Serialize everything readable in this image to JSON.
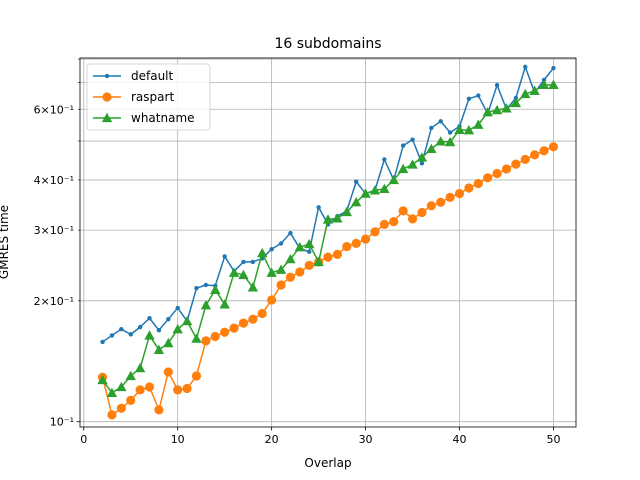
{
  "chart_data": {
    "type": "line",
    "title": "16 subdomains",
    "xlabel": "Overlap",
    "ylabel": "GMRES time",
    "xlim": [
      -0.4,
      52.4
    ],
    "ylim": [
      0.097,
      0.805
    ],
    "yscale": "log",
    "grid": true,
    "legend_position": "upper left",
    "x_ticks": [
      0,
      10,
      20,
      30,
      40,
      50
    ],
    "x_tick_labels": [
      "0",
      "10",
      "20",
      "30",
      "40",
      "50"
    ],
    "y_major_ticks": [
      0.1
    ],
    "y_major_tick_labels": [
      "10⁻¹"
    ],
    "y_minor_ticks": [
      0.2,
      0.3,
      0.4,
      0.5,
      0.6,
      0.7,
      0.8
    ],
    "y_minor_tick_labels": [
      "2×10⁻¹",
      "3×10⁻¹",
      "4×10⁻¹",
      "",
      "6×10⁻¹",
      "",
      ""
    ],
    "x": [
      2,
      3,
      4,
      5,
      6,
      7,
      8,
      9,
      10,
      11,
      12,
      13,
      14,
      15,
      16,
      17,
      18,
      19,
      20,
      21,
      22,
      23,
      24,
      25,
      26,
      27,
      28,
      29,
      30,
      31,
      32,
      33,
      34,
      35,
      36,
      37,
      38,
      39,
      40,
      41,
      42,
      43,
      44,
      45,
      46,
      47,
      48,
      49,
      50
    ],
    "series": [
      {
        "name": "default",
        "color": "#1f77b4",
        "marker": "point",
        "values": [
          0.158,
          0.164,
          0.17,
          0.165,
          0.172,
          0.181,
          0.169,
          0.18,
          0.192,
          0.178,
          0.215,
          0.219,
          0.218,
          0.258,
          0.237,
          0.25,
          0.25,
          0.255,
          0.269,
          0.278,
          0.295,
          0.27,
          0.265,
          0.342,
          0.31,
          0.325,
          0.335,
          0.396,
          0.37,
          0.377,
          0.45,
          0.4,
          0.487,
          0.504,
          0.44,
          0.539,
          0.56,
          0.525,
          0.544,
          0.637,
          0.649,
          0.585,
          0.689,
          0.6,
          0.64,
          0.765,
          0.66,
          0.71,
          0.76
        ]
      },
      {
        "name": "raspart",
        "color": "#ff7f0e",
        "marker": "circle",
        "values": [
          0.129,
          0.104,
          0.108,
          0.113,
          0.12,
          0.122,
          0.107,
          0.133,
          0.12,
          0.121,
          0.13,
          0.159,
          0.163,
          0.167,
          0.171,
          0.176,
          0.18,
          0.186,
          0.201,
          0.219,
          0.229,
          0.236,
          0.245,
          0.25,
          0.257,
          0.261,
          0.273,
          0.278,
          0.285,
          0.297,
          0.31,
          0.315,
          0.335,
          0.32,
          0.332,
          0.345,
          0.352,
          0.362,
          0.37,
          0.382,
          0.392,
          0.405,
          0.415,
          0.426,
          0.438,
          0.45,
          0.462,
          0.473,
          0.484
        ]
      },
      {
        "name": "whatname",
        "color": "#2ca02c",
        "marker": "triangle",
        "values": [
          0.127,
          0.118,
          0.122,
          0.13,
          0.136,
          0.164,
          0.151,
          0.157,
          0.17,
          0.178,
          0.161,
          0.195,
          0.213,
          0.196,
          0.235,
          0.232,
          0.216,
          0.263,
          0.235,
          0.239,
          0.254,
          0.272,
          0.277,
          0.25,
          0.319,
          0.321,
          0.333,
          0.352,
          0.37,
          0.377,
          0.38,
          0.4,
          0.426,
          0.437,
          0.455,
          0.478,
          0.499,
          0.497,
          0.533,
          0.532,
          0.549,
          0.59,
          0.597,
          0.603,
          0.622,
          0.655,
          0.667,
          0.69,
          0.69
        ]
      }
    ]
  }
}
